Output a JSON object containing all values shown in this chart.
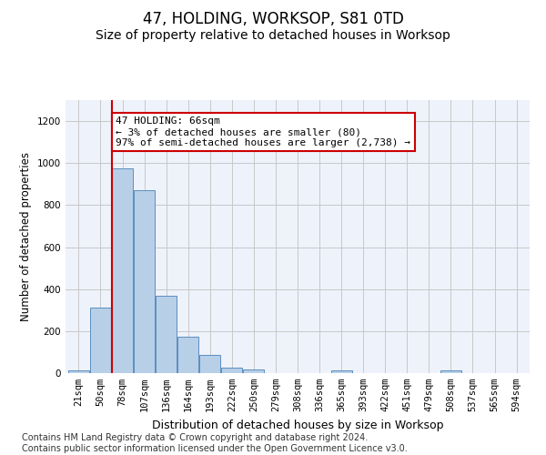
{
  "title": "47, HOLDING, WORKSOP, S81 0TD",
  "subtitle": "Size of property relative to detached houses in Worksop",
  "xlabel": "Distribution of detached houses by size in Worksop",
  "ylabel": "Number of detached properties",
  "annotation_line1": "47 HOLDING: 66sqm",
  "annotation_line2": "← 3% of detached houses are smaller (80)",
  "annotation_line3": "97% of semi-detached houses are larger (2,738) →",
  "bar_categories": [
    "21sqm",
    "50sqm",
    "78sqm",
    "107sqm",
    "136sqm",
    "164sqm",
    "193sqm",
    "222sqm",
    "250sqm",
    "279sqm",
    "308sqm",
    "336sqm",
    "365sqm",
    "393sqm",
    "422sqm",
    "451sqm",
    "479sqm",
    "508sqm",
    "537sqm",
    "565sqm",
    "594sqm"
  ],
  "bar_values": [
    14,
    310,
    975,
    870,
    370,
    175,
    85,
    28,
    18,
    0,
    0,
    0,
    14,
    0,
    0,
    0,
    0,
    14,
    0,
    0,
    0
  ],
  "bar_color": "#b8cfe8",
  "bar_edge_color": "#5a8fc0",
  "vline_color": "#cc0000",
  "vline_x": 1.5,
  "ylim": [
    0,
    1300
  ],
  "yticks": [
    0,
    200,
    400,
    600,
    800,
    1000,
    1200
  ],
  "annotation_box_color": "#cc0000",
  "footer": "Contains HM Land Registry data © Crown copyright and database right 2024.\nContains public sector information licensed under the Open Government Licence v3.0.",
  "bg_color": "#eef2fb",
  "grid_color": "#c8c8c8",
  "title_fontsize": 12,
  "subtitle_fontsize": 10,
  "axis_label_fontsize": 8.5,
  "tick_fontsize": 7.5,
  "annotation_fontsize": 8,
  "footer_fontsize": 7
}
